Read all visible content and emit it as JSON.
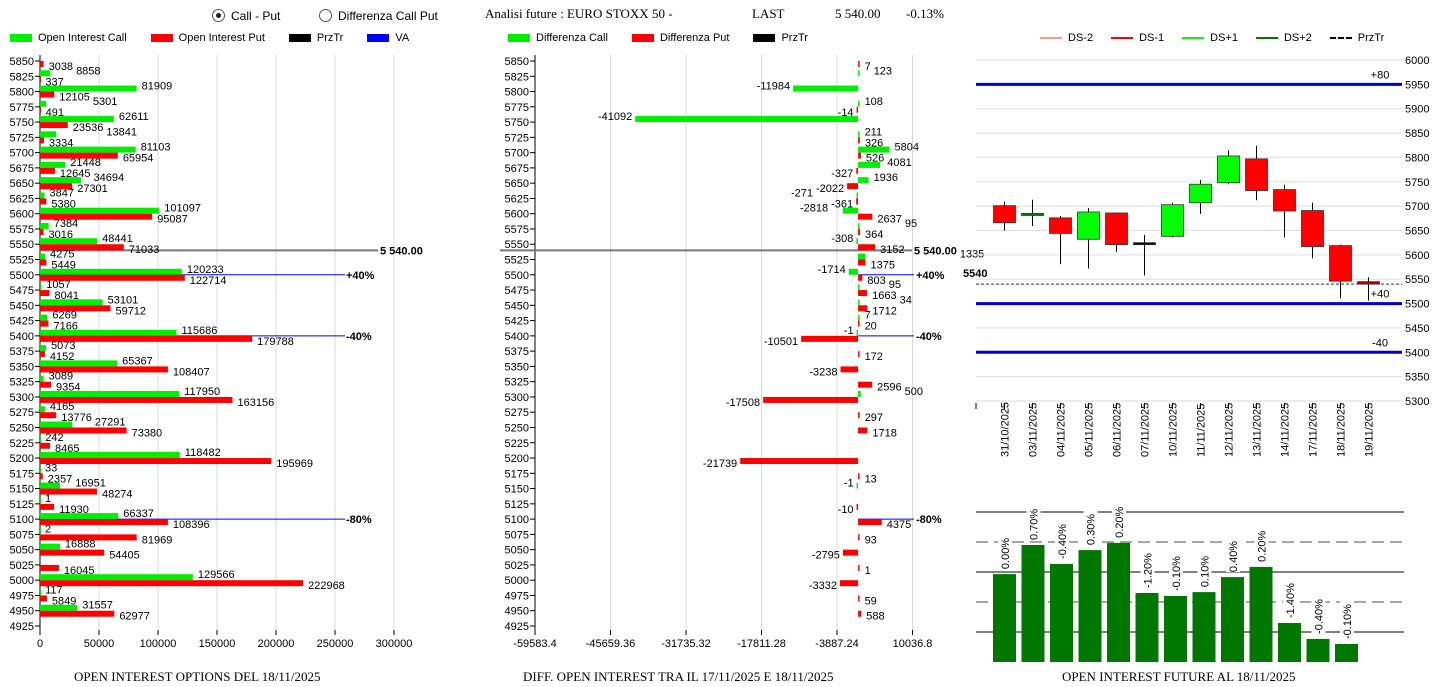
{
  "header": {
    "radio_call_put": "Call - Put",
    "radio_diff": "Differenza Call Put",
    "selected": "Call - Put",
    "future_label": "Analisi future : EURO STOXX 50 -",
    "last_label": "LAST",
    "last_value": "5 540.00",
    "change": "-0.13%"
  },
  "colors": {
    "call": "#00ee00",
    "put": "#ff0000",
    "prztr": "#000000",
    "va": "#0000ff",
    "future_bar": "#007700",
    "candle_up": "#00ff00",
    "candle_down": "#ff0000"
  },
  "chart_data": [
    {
      "type": "bar",
      "orientation": "horizontal",
      "title": "OPEN INTEREST OPTIONS DEL 18/11/2025",
      "legend": [
        "Open Interest Call",
        "Open Interest Put",
        "PrzTr",
        "VA"
      ],
      "xlim": [
        0,
        300000
      ],
      "xticks": [
        "0",
        "50000",
        "100000",
        "150000",
        "200000",
        "250000",
        "300000"
      ],
      "categories": [
        5850,
        5825,
        5800,
        5775,
        5750,
        5725,
        5700,
        5675,
        5650,
        5625,
        5600,
        5575,
        5550,
        5525,
        5500,
        5475,
        5450,
        5425,
        5400,
        5375,
        5350,
        5325,
        5300,
        5275,
        5250,
        5225,
        5200,
        5175,
        5150,
        5125,
        5100,
        5075,
        5050,
        5025,
        5000,
        4975,
        4950,
        4925
      ],
      "series": [
        {
          "name": "Open Interest Call",
          "values": [
            null,
            8858,
            81909,
            5301,
            62611,
            13841,
            81103,
            21448,
            34694,
            3847,
            101097,
            7384,
            48441,
            4275,
            120233,
            1057,
            53101,
            6269,
            115686,
            5073,
            65367,
            3089,
            117950,
            4165,
            27291,
            242,
            118482,
            33,
            16951,
            1,
            66337,
            2,
            16888,
            null,
            129566,
            117,
            31557,
            null
          ]
        },
        {
          "name": "Open Interest Put",
          "values": [
            3038,
            337,
            12105,
            491,
            23536,
            3334,
            65954,
            12645,
            27301,
            5380,
            95087,
            3016,
            71033,
            5449,
            122714,
            8041,
            59712,
            7166,
            179788,
            4152,
            108407,
            9354,
            163156,
            13776,
            73380,
            8465,
            195969,
            2357,
            48274,
            11930,
            108396,
            81969,
            54405,
            16045,
            222968,
            5849,
            62977,
            null
          ]
        }
      ],
      "markers": [
        {
          "strike": 5540,
          "label": "5 540.00",
          "kind": "prztr"
        },
        {
          "strike": 5500,
          "label": "+40%",
          "kind": "va"
        },
        {
          "strike": 5400,
          "label": "-40%",
          "kind": "va"
        },
        {
          "strike": 5100,
          "label": "-80%",
          "kind": "va"
        }
      ]
    },
    {
      "type": "bar",
      "orientation": "horizontal",
      "title": "DIFF. OPEN INTEREST TRA IL 17/11/2025 E 18/11/2025",
      "legend": [
        "Differenza Call",
        "Differenza Put",
        "PrzTr"
      ],
      "xlim": [
        -59583.4,
        10036.8
      ],
      "xticks": [
        "-59583.4",
        "-45659.36",
        "-31735.32",
        "-17811.28",
        "-3887.24",
        "10036.8"
      ],
      "xtick_values": [
        -59583.4,
        -45659.36,
        -31735.32,
        -17811.28,
        -3887.24,
        10036.8
      ],
      "categories": [
        5850,
        5825,
        5800,
        5775,
        5750,
        5725,
        5700,
        5675,
        5650,
        5625,
        5600,
        5575,
        5550,
        5525,
        5500,
        5475,
        5450,
        5425,
        5400,
        5375,
        5350,
        5325,
        5300,
        5275,
        5250,
        5225,
        5200,
        5175,
        5150,
        5125,
        5100,
        5075,
        5050,
        5025,
        5000,
        4975,
        4950,
        4925
      ],
      "series": [
        {
          "name": "Differenza Call",
          "values": [
            null,
            123,
            -11984,
            108,
            -41092,
            211,
            5804,
            4081,
            1936,
            -271,
            -2818,
            95,
            -308,
            1335,
            -1714,
            95,
            34,
            7,
            -1,
            null,
            null,
            null,
            500,
            null,
            null,
            null,
            null,
            null,
            -1,
            null,
            null,
            null,
            null,
            null,
            null,
            null,
            null,
            null
          ]
        },
        {
          "name": "Differenza Put",
          "values": [
            7,
            null,
            null,
            -14,
            null,
            326,
            526,
            -327,
            -2022,
            -361,
            2637,
            364,
            3152,
            1375,
            803,
            1663,
            1712,
            20,
            -10501,
            172,
            -3238,
            2596,
            -17508,
            297,
            1718,
            null,
            -21739,
            13,
            null,
            -10,
            4375,
            93,
            -2795,
            1,
            -3332,
            59,
            588,
            null
          ]
        }
      ],
      "markers": [
        {
          "strike": 5540,
          "label": "5 540.00",
          "kind": "prztr"
        },
        {
          "strike": 5500,
          "label": "+40%",
          "kind": "va"
        },
        {
          "strike": 5400,
          "label": "-40%",
          "kind": "va"
        },
        {
          "strike": 5100,
          "label": "-80%",
          "kind": "va"
        }
      ]
    },
    {
      "type": "candlestick",
      "legend": [
        "DS-2",
        "DS-1",
        "DS+1",
        "DS+2",
        "PrzTr"
      ],
      "legend_colors": [
        "#f4a080",
        "#ff0000",
        "#00ff00",
        "#007700",
        "#000000"
      ],
      "ylim": [
        5300,
        6000
      ],
      "yticks": [
        "6000",
        "5950",
        "5900",
        "5850",
        "5800",
        "5750",
        "5700",
        "5650",
        "5600",
        "5550",
        "5500",
        "5450",
        "5400",
        "5350",
        "5300"
      ],
      "categories": [
        "31/10/2025",
        "03/11/2025",
        "04/11/2025",
        "05/11/2025",
        "06/11/2025",
        "07/11/2025",
        "10/11/2025",
        "11/11/2025",
        "12/11/2025",
        "13/11/2025",
        "14/11/2025",
        "17/11/2025",
        "18/11/2025",
        "19/11/2025"
      ],
      "ohlc": [
        [
          5701,
          5709,
          5650,
          5666
        ],
        [
          5682,
          5713,
          5659,
          5685
        ],
        [
          5676,
          5680,
          5581,
          5644
        ],
        [
          5632,
          5696,
          5572,
          5688
        ],
        [
          5686,
          5687,
          5606,
          5621
        ],
        [
          5624,
          5641,
          5558,
          5625
        ],
        [
          5638,
          5707,
          5636,
          5703
        ],
        [
          5707,
          5754,
          5684,
          5745
        ],
        [
          5748,
          5814,
          5745,
          5803
        ],
        [
          5797,
          5824,
          5712,
          5732
        ],
        [
          5734,
          5744,
          5636,
          5690
        ],
        [
          5691,
          5707,
          5593,
          5617
        ],
        [
          5619,
          5621,
          5511,
          5546
        ],
        [
          5545,
          5554,
          5506,
          5540
        ]
      ],
      "levels": [
        {
          "value": 5950,
          "label": "+80"
        },
        {
          "value": 5500,
          "label": "+40"
        },
        {
          "value": 5400,
          "label": "-40"
        }
      ],
      "price_line": {
        "value": 5540,
        "label": "5540"
      }
    },
    {
      "type": "bar",
      "title": "OPEN INTEREST FUTURE AL 18/11/2025",
      "data_labels": [
        "0.00%",
        "0.70%",
        "-0.40%",
        "0.30%",
        "0.20%",
        "-1.20%",
        "-0.10%",
        "0.10%",
        "0.40%",
        "0.20%",
        "-1.40%",
        "-0.40%",
        "-0.10%"
      ],
      "relative_levels": [
        2.93,
        3.9,
        3.27,
        3.73,
        3.97,
        2.3,
        2.2,
        2.33,
        2.83,
        3.17,
        1.3,
        0.77,
        0.6
      ],
      "ylim": [
        0,
        5
      ],
      "grid": true
    }
  ]
}
